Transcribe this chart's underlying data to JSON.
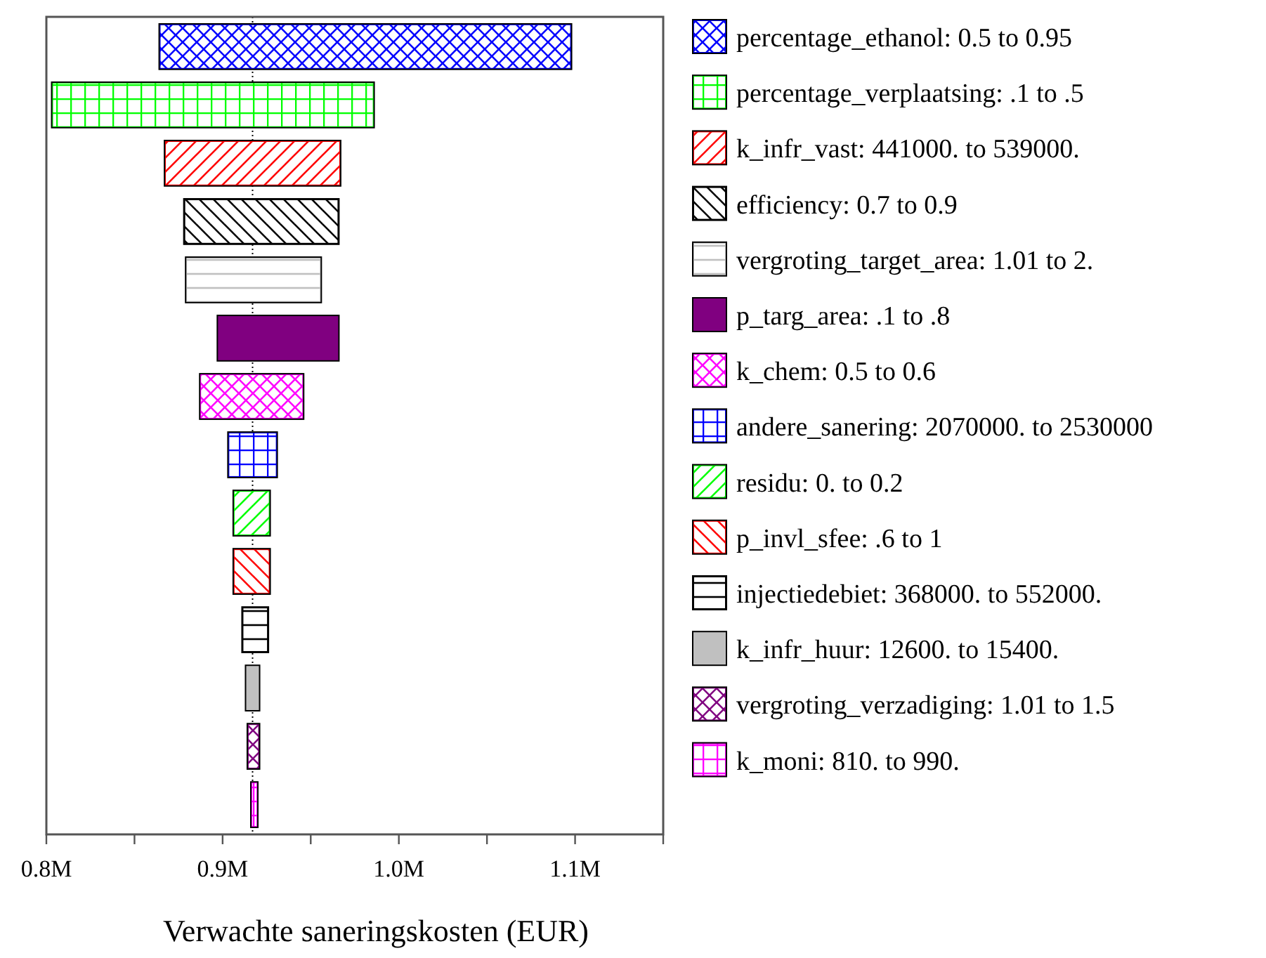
{
  "chart_data": {
    "type": "bar",
    "orientation": "horizontal",
    "xlabel": "Verwachte saneringskosten (EUR)",
    "categories": [
      null,
      null,
      null,
      null,
      null,
      null,
      null,
      null,
      null,
      null,
      null,
      null,
      null,
      null
    ],
    "series": [
      {
        "name": "percentage_ethanol: 0.5 to 0.95",
        "color": "#0000ff",
        "values": [
          0.234,
          null,
          null,
          null,
          null,
          null,
          null,
          null,
          null,
          null,
          null,
          null,
          null,
          null
        ],
        "base": [
          0.864,
          null,
          null,
          null,
          null,
          null,
          null,
          null,
          null,
          null,
          null,
          null,
          null,
          null
        ]
      },
      {
        "name": "percentage_verplaatsing: .1 to .5",
        "color": "#00ff00",
        "values": [
          null,
          0.183,
          null,
          null,
          null,
          null,
          null,
          null,
          null,
          null,
          null,
          null,
          null,
          null
        ],
        "base": [
          null,
          0.803,
          null,
          null,
          null,
          null,
          null,
          null,
          null,
          null,
          null,
          null,
          null,
          null
        ]
      },
      {
        "name": "k_infr_vast: 441000. to 539000.",
        "color": "#ff0000",
        "values": [
          null,
          null,
          0.1,
          null,
          null,
          null,
          null,
          null,
          null,
          null,
          null,
          null,
          null,
          null
        ],
        "base": [
          null,
          null,
          0.867,
          null,
          null,
          null,
          null,
          null,
          null,
          null,
          null,
          null,
          null,
          null
        ]
      },
      {
        "name": "efficiency: 0.7 to 0.9",
        "color": "#000000",
        "values": [
          null,
          null,
          null,
          0.088,
          null,
          null,
          null,
          null,
          null,
          null,
          null,
          null,
          null,
          null
        ],
        "base": [
          null,
          null,
          null,
          0.878,
          null,
          null,
          null,
          null,
          null,
          null,
          null,
          null,
          null,
          null
        ]
      },
      {
        "name": "vergroting_target_area: 1.01 to 2.",
        "color": "#c0c0c0",
        "values": [
          null,
          null,
          null,
          null,
          0.077,
          null,
          null,
          null,
          null,
          null,
          null,
          null,
          null,
          null
        ],
        "base": [
          null,
          null,
          null,
          null,
          0.879,
          null,
          null,
          null,
          null,
          null,
          null,
          null,
          null,
          null
        ]
      },
      {
        "name": "p_targ_area: .1 to .8",
        "color": "#800080",
        "values": [
          null,
          null,
          null,
          null,
          null,
          0.069,
          null,
          null,
          null,
          null,
          null,
          null,
          null,
          null
        ],
        "base": [
          null,
          null,
          null,
          null,
          null,
          0.897,
          null,
          null,
          null,
          null,
          null,
          null,
          null,
          null
        ]
      },
      {
        "name": "k_chem: 0.5 to 0.6",
        "color": "#ff00ff",
        "values": [
          null,
          null,
          null,
          null,
          null,
          null,
          0.059,
          null,
          null,
          null,
          null,
          null,
          null,
          null
        ],
        "base": [
          null,
          null,
          null,
          null,
          null,
          null,
          0.887,
          null,
          null,
          null,
          null,
          null,
          null,
          null
        ]
      },
      {
        "name": "andere_sanering: 2070000. to 2530000",
        "color": "#0000ff",
        "values": [
          null,
          null,
          null,
          null,
          null,
          null,
          null,
          0.028,
          null,
          null,
          null,
          null,
          null,
          null
        ],
        "base": [
          null,
          null,
          null,
          null,
          null,
          null,
          null,
          0.903,
          null,
          null,
          null,
          null,
          null,
          null
        ]
      },
      {
        "name": "residu: 0. to 0.2",
        "color": "#00ff00",
        "values": [
          null,
          null,
          null,
          null,
          null,
          null,
          null,
          null,
          0.021,
          null,
          null,
          null,
          null,
          null
        ],
        "base": [
          null,
          null,
          null,
          null,
          null,
          null,
          null,
          null,
          0.906,
          null,
          null,
          null,
          null,
          null
        ]
      },
      {
        "name": "p_invl_sfee: .6 to 1",
        "color": "#ff0000",
        "values": [
          null,
          null,
          null,
          null,
          null,
          null,
          null,
          null,
          null,
          0.021,
          null,
          null,
          null,
          null
        ],
        "base": [
          null,
          null,
          null,
          null,
          null,
          null,
          null,
          null,
          null,
          0.906,
          null,
          null,
          null,
          null
        ]
      },
      {
        "name": "injectiedebiet: 368000. to 552000.",
        "color": "#000000",
        "values": [
          null,
          null,
          null,
          null,
          null,
          null,
          null,
          null,
          null,
          null,
          0.015,
          null,
          null,
          null
        ],
        "base": [
          null,
          null,
          null,
          null,
          null,
          null,
          null,
          null,
          null,
          null,
          0.911,
          null,
          null,
          null
        ]
      },
      {
        "name": "k_infr_huur: 12600. to 15400.",
        "color": "#c0c0c0",
        "values": [
          null,
          null,
          null,
          null,
          null,
          null,
          null,
          null,
          null,
          null,
          null,
          0.008,
          null,
          null
        ],
        "base": [
          null,
          null,
          null,
          null,
          null,
          null,
          null,
          null,
          null,
          null,
          null,
          0.913,
          null,
          null
        ]
      },
      {
        "name": "vergroting_verzadiging: 1.01 to 1.5",
        "color": "#800080",
        "values": [
          null,
          null,
          null,
          null,
          null,
          null,
          null,
          null,
          null,
          null,
          null,
          null,
          0.007,
          null
        ],
        "base": [
          null,
          null,
          null,
          null,
          null,
          null,
          null,
          null,
          null,
          null,
          null,
          null,
          0.914,
          null
        ]
      },
      {
        "name": "k_moni: 810. to 990.",
        "color": "#ff00ff",
        "values": [
          null,
          null,
          null,
          null,
          null,
          null,
          null,
          null,
          null,
          null,
          null,
          null,
          null,
          0.004
        ],
        "base": [
          null,
          null,
          null,
          null,
          null,
          null,
          null,
          null,
          null,
          null,
          null,
          null,
          null,
          0.916
        ]
      }
    ],
    "xlim": [
      0.8,
      1.15
    ],
    "xticks": [
      {
        "value": 0.8,
        "label": "0.8M"
      },
      {
        "value": 0.85,
        "label": null
      },
      {
        "value": 0.9,
        "label": "0.9M"
      },
      {
        "value": 0.95,
        "label": null
      },
      {
        "value": 1.0,
        "label": "1.0M"
      },
      {
        "value": 1.05,
        "label": null
      },
      {
        "value": 1.1,
        "label": "1.1M"
      },
      {
        "value": 1.15,
        "label": null
      }
    ],
    "ref_lines": [
      {
        "axis": "x",
        "value": 0.917,
        "line_style": "dotted"
      }
    ],
    "tick_labels": "x",
    "legend": "right",
    "grid": false
  }
}
